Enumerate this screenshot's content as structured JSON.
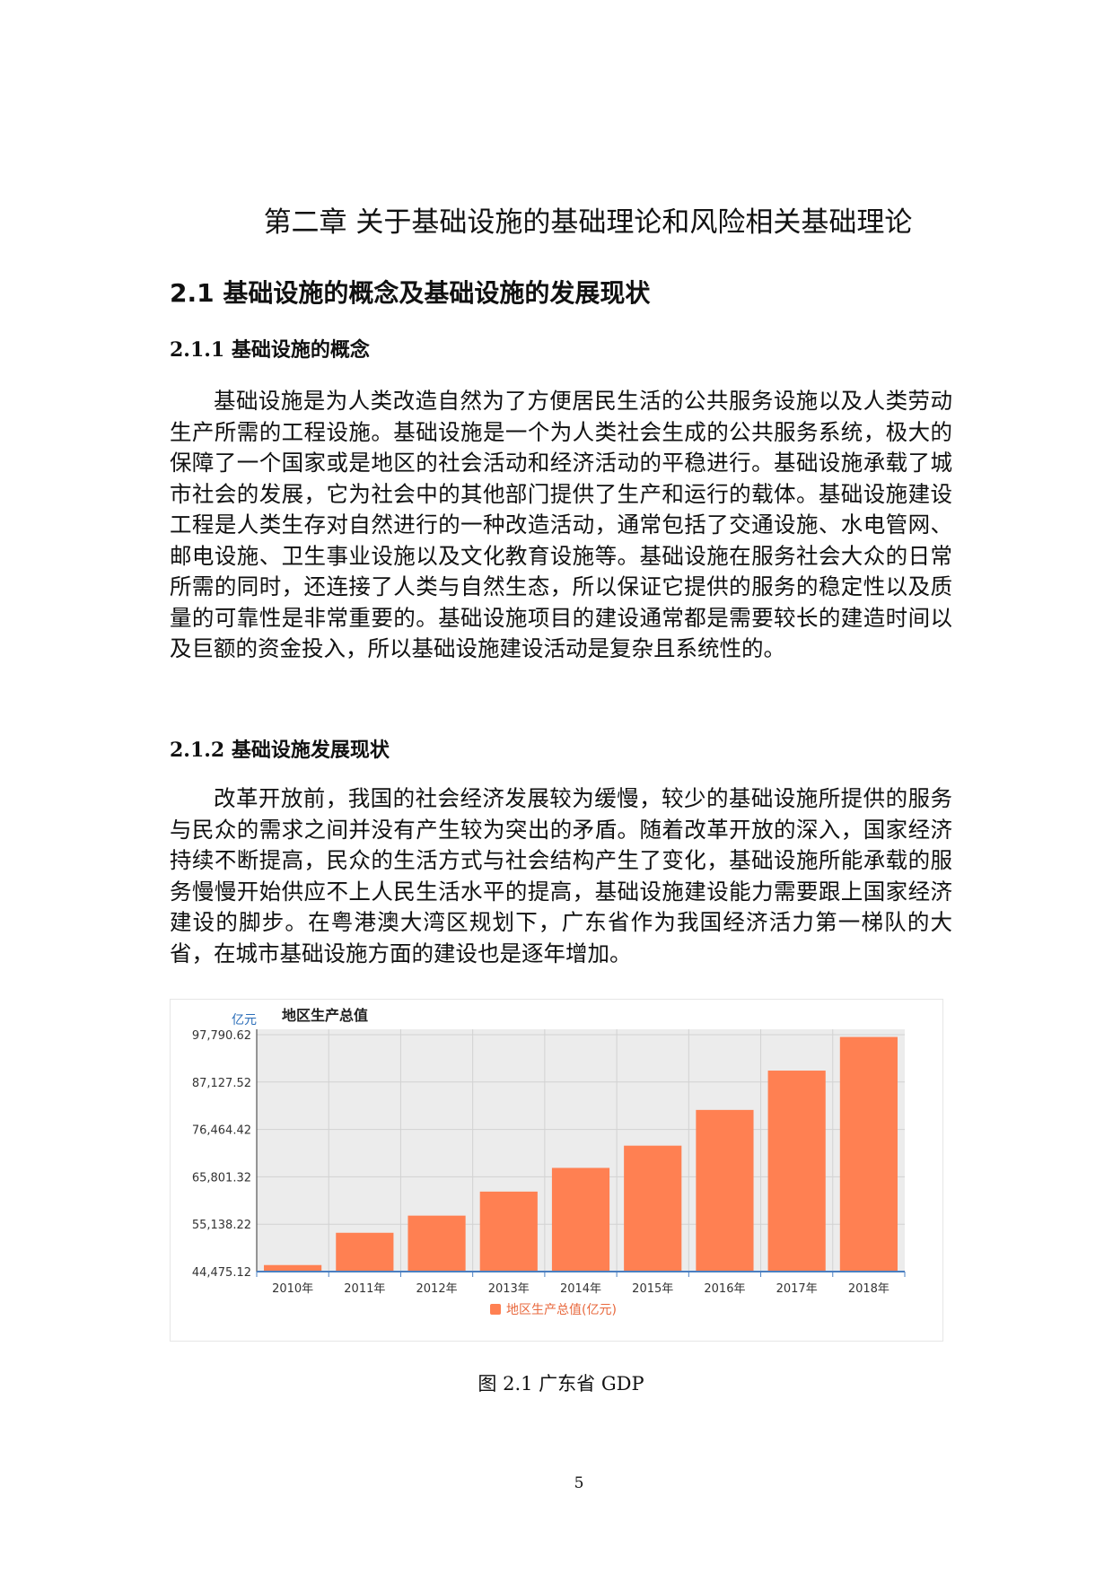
{
  "chapter_title": "第二章 关于基础设施的基础理论和风险相关基础理论",
  "section_title": "2.1 基础设施的概念及基础设施的发展现状",
  "subsection_1": {
    "title": "2.1.1 基础设施的概念",
    "paragraph": "基础设施是为人类改造自然为了方便居民生活的公共服务设施以及人类劳动生产所需的工程设施。基础设施是一个为人类社会生成的公共服务系统，极大的保障了一个国家或是地区的社会活动和经济活动的平稳进行。基础设施承载了城市社会的发展，它为社会中的其他部门提供了生产和运行的载体。基础设施建设工程是人类生存对自然进行的一种改造活动，通常包括了交通设施、水电管网、邮电设施、卫生事业设施以及文化教育设施等。基础设施在服务社会大众的日常所需的同时，还连接了人类与自然生态，所以保证它提供的服务的稳定性以及质量的可靠性是非常重要的。基础设施项目的建设通常都是需要较长的建造时间以及巨额的资金投入，所以基础设施建设活动是复杂且系统性的。"
  },
  "subsection_2": {
    "title": "2.1.2 基础设施发展现状",
    "paragraph": "改革开放前，我国的社会经济发展较为缓慢，较少的基础设施所提供的服务与民众的需求之间并没有产生较为突出的矛盾。随着改革开放的深入，国家经济持续不断提高，民众的生活方式与社会结构产生了变化，基础设施所能承载的服务慢慢开始供应不上人民生活水平的提高，基础设施建设能力需要跟上国家经济建设的脚步。在粤港澳大湾区规划下，广东省作为我国经济活力第一梯队的大省，在城市基础设施方面的建设也是逐年增加。"
  },
  "chart_data": {
    "type": "bar",
    "title": "地区生产总值",
    "ylabel": "亿元",
    "categories": [
      "2010年",
      "2011年",
      "2012年",
      "2013年",
      "2014年",
      "2015年",
      "2016年",
      "2017年",
      "2018年"
    ],
    "series": [
      {
        "name": "地区生产总值(亿元)",
        "values": [
          45945,
          53210,
          57068,
          62475,
          67810,
          72813,
          80855,
          89705,
          97277
        ]
      }
    ],
    "yticks": [
      "44,475.12",
      "55,138.22",
      "65,801.32",
      "76,464.42",
      "87,127.52",
      "97,790.62"
    ],
    "ylim": [
      44475.12,
      97790.62
    ],
    "grid": true,
    "legend_position": "bottom",
    "bar_color": "#ff8052"
  },
  "figure_caption": "图 2.1 广东省 GDP",
  "page_number": "5"
}
